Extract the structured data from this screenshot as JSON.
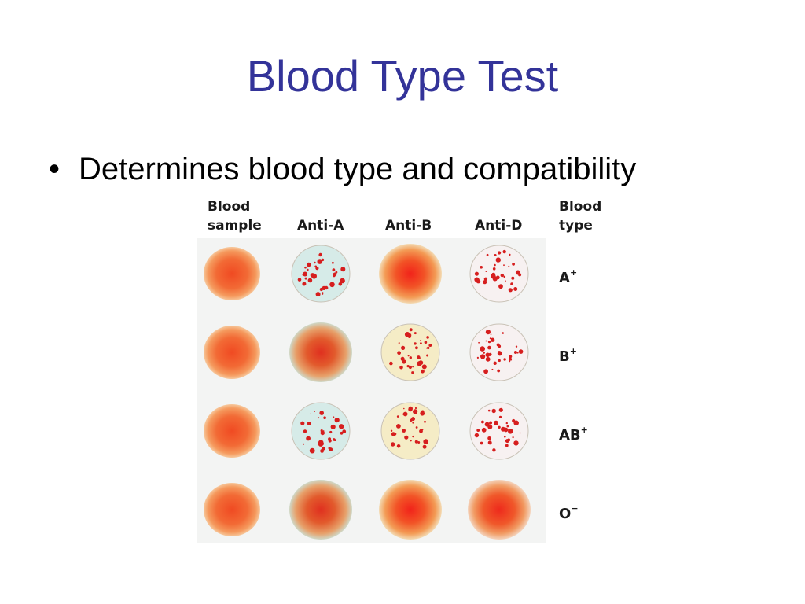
{
  "slide": {
    "title": "Blood Type Test",
    "bullet_symbol": "•",
    "bullet_text": "Determines blood type and compatibility"
  },
  "figure": {
    "headers": [
      {
        "line1": "Blood",
        "line2": "sample"
      },
      {
        "line1": "Anti-A",
        "line2": ""
      },
      {
        "line1": "Anti-B",
        "line2": ""
      },
      {
        "line1": "Anti-D",
        "line2": ""
      },
      {
        "line1": "Blood",
        "line2": "type"
      }
    ],
    "rows": [
      {
        "type": "A",
        "rh": "+",
        "cells": [
          "sample",
          "agglutinated",
          "smooth",
          "agglutinated"
        ]
      },
      {
        "type": "B",
        "rh": "+",
        "cells": [
          "sample",
          "smooth",
          "agglutinated",
          "agglutinated"
        ]
      },
      {
        "type": "AB",
        "rh": "+",
        "cells": [
          "sample",
          "agglutinated",
          "agglutinated",
          "agglutinated"
        ]
      },
      {
        "type": "O",
        "rh": "−",
        "cells": [
          "sample",
          "smooth",
          "smooth",
          "smooth"
        ]
      }
    ],
    "colors": {
      "title": "#333399",
      "blood": "#f0502a",
      "clump": "#d61e1e",
      "anti_a_reagent": "#d6ebe8",
      "anti_b_reagent": "#f5ecc6",
      "anti_d_reagent": "#f7f1f1"
    }
  }
}
